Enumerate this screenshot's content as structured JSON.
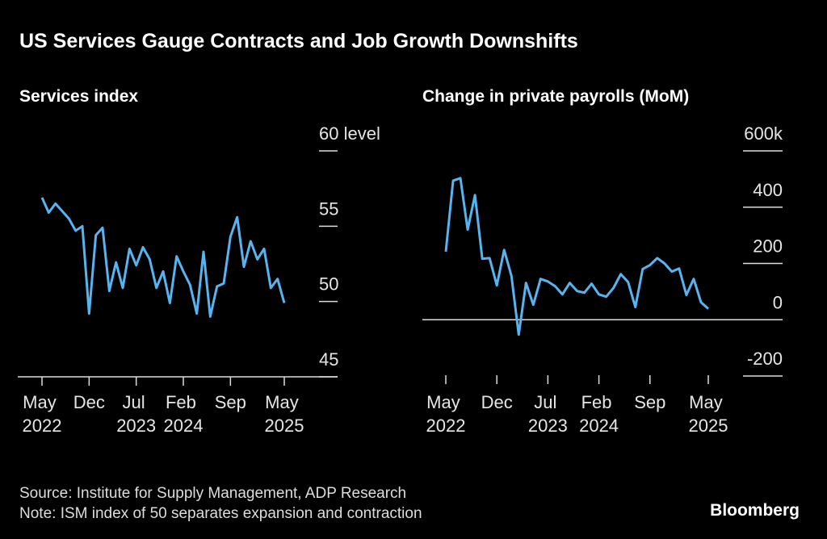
{
  "title": "US Services Gauge Contracts and Job Growth Downshifts",
  "source": "Source: Institute for Supply Management, ADP Research",
  "note": "Note: ISM index of 50 separates expansion and contraction",
  "logo": "Bloomberg",
  "chart_data": [
    {
      "type": "line",
      "title": "Services index",
      "x": [
        "2022-05",
        "2022-06",
        "2022-07",
        "2022-08",
        "2022-09",
        "2022-10",
        "2022-11",
        "2022-12",
        "2023-01",
        "2023-02",
        "2023-03",
        "2023-04",
        "2023-05",
        "2023-06",
        "2023-07",
        "2023-08",
        "2023-09",
        "2023-10",
        "2023-11",
        "2023-12",
        "2024-01",
        "2024-02",
        "2024-03",
        "2024-04",
        "2024-05",
        "2024-06",
        "2024-07",
        "2024-08",
        "2024-09",
        "2024-10",
        "2024-11",
        "2024-12",
        "2025-01",
        "2025-02",
        "2025-03",
        "2025-04",
        "2025-05"
      ],
      "series": [
        {
          "name": "Services index",
          "color": "#56b4f0",
          "values": [
            56.9,
            55.9,
            56.5,
            56.0,
            55.5,
            54.7,
            55.0,
            49.2,
            54.4,
            54.9,
            50.7,
            52.6,
            50.9,
            53.5,
            52.4,
            53.6,
            52.8,
            50.9,
            52.0,
            49.9,
            53.0,
            52.0,
            51.1,
            49.2,
            53.3,
            49.0,
            51.0,
            51.2,
            54.3,
            55.6,
            52.3,
            54.0,
            52.8,
            53.5,
            50.9,
            51.5,
            49.9
          ]
        }
      ],
      "ylim": [
        45,
        60
      ],
      "yticks": [
        45,
        50,
        55,
        {
          "value": 60,
          "label": "60 level"
        }
      ],
      "xticks": [
        {
          "value": "2022-05",
          "label": "May 2022"
        },
        {
          "value": "2022-12",
          "label": "Dec"
        },
        {
          "value": "2023-07",
          "label": "Jul 2023"
        },
        {
          "value": "2024-02",
          "label": "Feb 2024"
        },
        {
          "value": "2024-09",
          "label": "Sep"
        },
        {
          "value": "2025-05",
          "label": "May 2025"
        }
      ]
    },
    {
      "type": "line",
      "title": "Change in private payrolls (MoM)",
      "x": [
        "2022-05",
        "2022-06",
        "2022-07",
        "2022-08",
        "2022-09",
        "2022-10",
        "2022-11",
        "2022-12",
        "2023-01",
        "2023-02",
        "2023-03",
        "2023-04",
        "2023-05",
        "2023-06",
        "2023-07",
        "2023-08",
        "2023-09",
        "2023-10",
        "2023-11",
        "2023-12",
        "2024-01",
        "2024-02",
        "2024-03",
        "2024-04",
        "2024-05",
        "2024-06",
        "2024-07",
        "2024-08",
        "2024-09",
        "2024-10",
        "2024-11",
        "2024-12",
        "2025-01",
        "2025-02",
        "2025-03",
        "2025-04",
        "2025-05"
      ],
      "series": [
        {
          "name": "Change in private payrolls (MoM)",
          "color": "#56b4f0",
          "values": [
            242,
            494,
            503,
            320,
            443,
            217,
            219,
            122,
            248,
            156,
            -53,
            131,
            53,
            145,
            136,
            119,
            90,
            131,
            102,
            96,
            128,
            90,
            82,
            113,
            162,
            134,
            45,
            180,
            194,
            219,
            200,
            171,
            182,
            88,
            145,
            62,
            39
          ]
        }
      ],
      "ylim": [
        -200,
        600
      ],
      "yticks": [
        -200,
        0,
        200,
        400,
        {
          "value": 600,
          "label": "600k"
        }
      ],
      "xticks": [
        {
          "value": "2022-05",
          "label": "May 2022"
        },
        {
          "value": "2022-12",
          "label": "Dec"
        },
        {
          "value": "2023-07",
          "label": "Jul 2023"
        },
        {
          "value": "2024-02",
          "label": "Feb 2024"
        },
        {
          "value": "2024-09",
          "label": "Sep"
        },
        {
          "value": "2025-05",
          "label": "May 2025"
        }
      ]
    }
  ]
}
